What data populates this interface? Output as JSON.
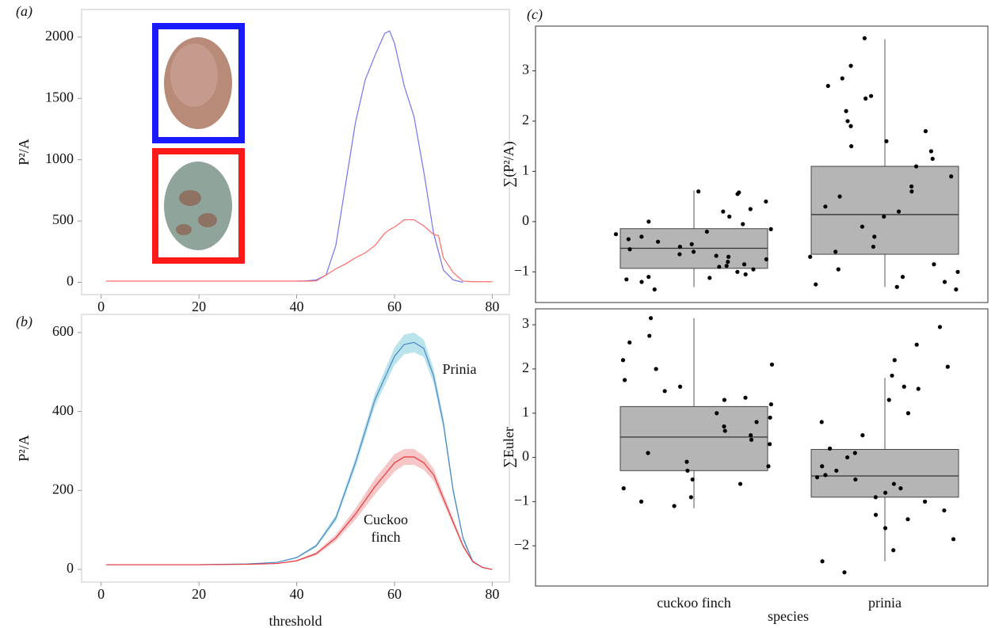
{
  "chart_data": [
    {
      "type": "line",
      "panel_label": "(a)",
      "ylabel": "P²/A",
      "xlim": [
        -4,
        83.5
      ],
      "ylim": [
        -100,
        2225
      ],
      "xticks": [
        0,
        20,
        40,
        60,
        80
      ],
      "yticks": [
        0,
        500,
        1000,
        1500,
        2000
      ],
      "x": [
        1,
        40,
        42,
        44,
        46,
        48,
        50,
        52,
        54,
        56,
        58,
        59,
        60,
        62,
        64,
        66,
        68,
        69,
        70,
        72,
        74,
        76,
        80
      ],
      "series": [
        {
          "color": "#7474f2",
          "values": [
            null,
            10,
            12,
            20,
            60,
            300,
            800,
            1300,
            1650,
            1850,
            2030,
            2050,
            1950,
            1600,
            1350,
            900,
            400,
            250,
            100,
            20,
            0,
            null,
            null
          ]
        },
        {
          "color": "#ff6b6b",
          "values": [
            10,
            10,
            10,
            12,
            60,
            110,
            150,
            200,
            240,
            300,
            400,
            430,
            450,
            510,
            510,
            460,
            390,
            380,
            200,
            80,
            10,
            5,
            5
          ]
        }
      ]
    },
    {
      "type": "line",
      "panel_label": "(b)",
      "ylabel": "P²/A",
      "xlabel": "threshold",
      "xlim": [
        -4,
        83.5
      ],
      "ylim": [
        -32,
        646
      ],
      "xticks": [
        0,
        20,
        40,
        60,
        80
      ],
      "yticks": [
        0,
        200,
        400,
        600
      ],
      "x": [
        1,
        20,
        30,
        36,
        40,
        44,
        48,
        52,
        56,
        60,
        62,
        64,
        66,
        68,
        70,
        72,
        74,
        76,
        78,
        80
      ],
      "series": [
        {
          "color": "#4a86c8",
          "band_color": "#a8dde6",
          "values": [
            12,
            12,
            14,
            18,
            30,
            60,
            130,
            270,
            430,
            540,
            570,
            575,
            560,
            490,
            370,
            200,
            80,
            20,
            5,
            0
          ],
          "ci": [
            0,
            0,
            0,
            1,
            2,
            4,
            8,
            12,
            16,
            22,
            25,
            25,
            22,
            18,
            14,
            10,
            6,
            3,
            1,
            0
          ]
        },
        {
          "color": "#e8383d",
          "band_color": "#f5b9b9",
          "values": [
            12,
            12,
            13,
            15,
            22,
            40,
            80,
            140,
            210,
            270,
            285,
            285,
            270,
            240,
            180,
            120,
            60,
            20,
            5,
            0
          ],
          "ci": [
            0,
            0,
            0,
            1,
            2,
            4,
            8,
            14,
            20,
            22,
            20,
            20,
            18,
            15,
            12,
            8,
            5,
            2,
            1,
            0
          ]
        }
      ],
      "annotations": [
        "Prinia",
        "Cuckoo",
        "finch"
      ]
    },
    {
      "type": "box",
      "panel_label": "(c)",
      "xlabel": "species",
      "categories": [
        "cuckoo finch",
        "prinia"
      ],
      "panels": [
        {
          "ylabel": "∑(P²/A)",
          "ylim": [
            -1.61,
            3.89
          ],
          "yticks": [
            {
              "value": -1,
              "label": "−1"
            },
            0,
            1,
            2,
            3
          ],
          "boxes": [
            {
              "low": -1.3,
              "q1": -0.93,
              "median": -0.53,
              "q3": -0.14,
              "high": 0.62
            },
            {
              "low": -1.3,
              "q1": -0.65,
              "median": 0.14,
              "q3": 1.1,
              "high": 3.63
            }
          ],
          "points": [
            [
              0.4,
              0.6,
              0.55,
              0.2,
              0.1,
              -0.05,
              -0.2,
              -0.3,
              -0.4,
              -0.45,
              -0.5,
              -0.55,
              -0.6,
              -0.65,
              -0.7,
              -0.75,
              -0.8,
              -0.85,
              -0.9,
              -0.95,
              -1.0,
              -1.05,
              -1.1,
              -1.15,
              -1.2,
              -1.35,
              -0.25,
              -0.35,
              0.0,
              -0.15,
              0.25,
              -0.68,
              -0.88,
              -1.12,
              0.58
            ],
            [
              3.65,
              3.1,
              2.85,
              2.7,
              2.5,
              2.45,
              2.2,
              2.0,
              1.8,
              1.6,
              1.4,
              1.25,
              1.1,
              0.9,
              0.7,
              0.5,
              0.3,
              0.1,
              -0.1,
              -0.3,
              -0.5,
              -0.7,
              -0.85,
              -1.0,
              -1.1,
              -1.2,
              -1.3,
              -1.35,
              0.2,
              0.6,
              1.9,
              -0.6,
              -0.95,
              1.5,
              -1.25
            ]
          ]
        },
        {
          "ylabel": "∑Euler",
          "ylim": [
            -2.91,
            3.36
          ],
          "yticks": [
            {
              "value": -2,
              "label": "−2"
            },
            {
              "value": -1,
              "label": "−1"
            },
            0,
            1,
            2,
            3
          ],
          "boxes": [
            {
              "low": -1.15,
              "q1": -0.3,
              "median": 0.46,
              "q3": 1.15,
              "high": 3.15
            },
            {
              "low": -2.35,
              "q1": -0.9,
              "median": -0.42,
              "q3": 0.18,
              "high": 1.8
            }
          ],
          "points": [
            [
              3.15,
              2.75,
              2.6,
              2.2,
              2.0,
              1.75,
              1.5,
              1.35,
              1.2,
              1.0,
              0.9,
              0.7,
              0.5,
              0.3,
              0.1,
              -0.1,
              -0.3,
              -0.5,
              -0.7,
              -0.9,
              -1.0,
              1.6,
              0.6,
              0.4,
              -0.2,
              1.3,
              0.8,
              -0.6,
              2.1,
              -1.1
            ],
            [
              2.95,
              2.55,
              2.2,
              2.05,
              1.85,
              1.6,
              1.3,
              1.0,
              0.8,
              0.5,
              0.2,
              0.0,
              -0.2,
              -0.4,
              -0.5,
              -0.6,
              -0.8,
              -1.0,
              -1.2,
              -1.4,
              -1.6,
              -1.85,
              -2.1,
              -2.35,
              -2.6,
              -0.3,
              -0.45,
              0.1,
              -0.9,
              -1.3,
              1.55,
              -0.7
            ]
          ]
        }
      ]
    }
  ]
}
